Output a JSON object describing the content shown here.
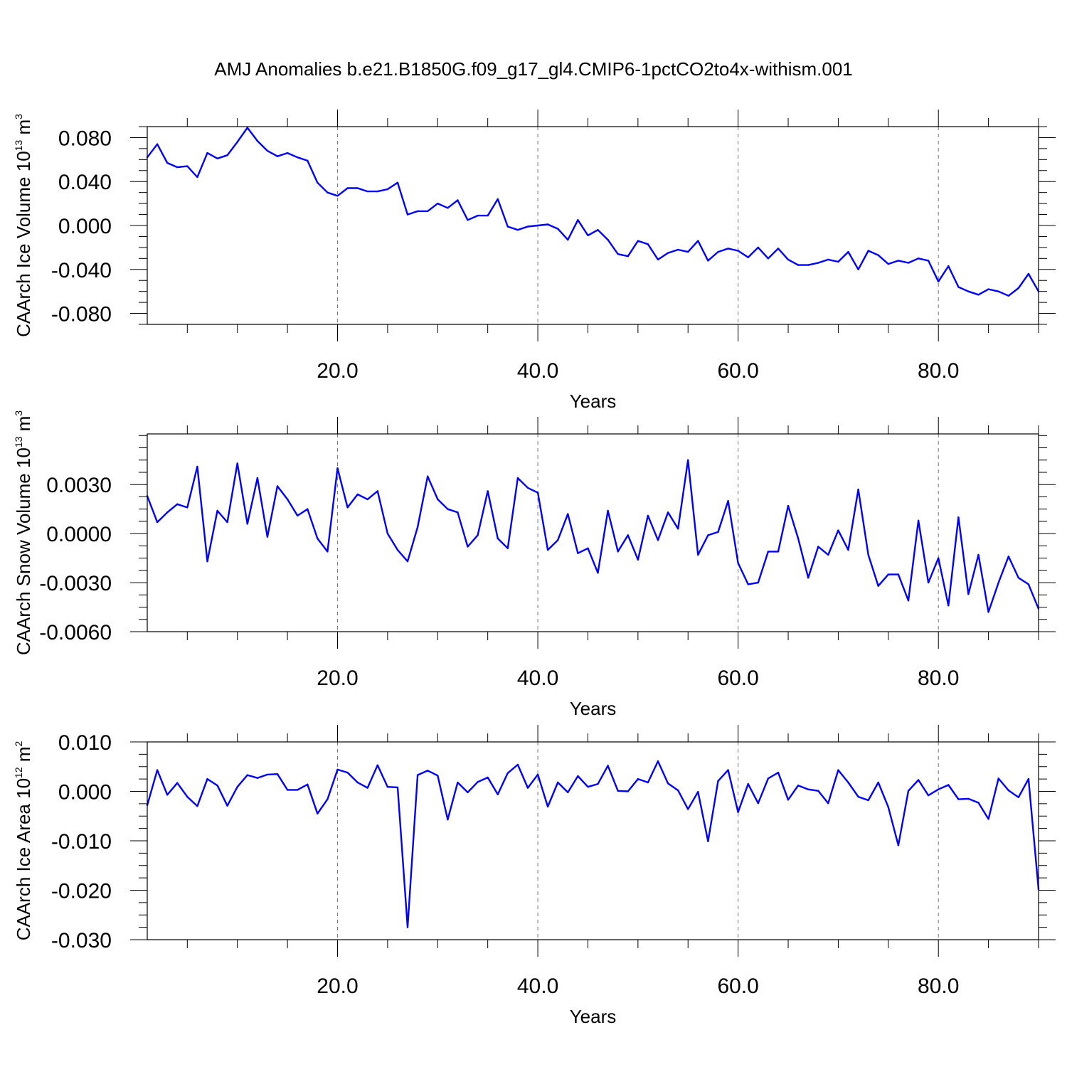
{
  "title": "AMJ Anomalies b.e21.B1850G.f09_g17_gl4.CMIP6-1pctCO2to4x-withism.001",
  "colors": {
    "line": "#0000ff",
    "grid": "#777777",
    "frame": "#000000"
  },
  "chart_data": [
    {
      "type": "line",
      "ylabel": {
        "text": "CAArch Ice Volume 10",
        "sup": "13",
        "unit": " m",
        "unit_sup": "3"
      },
      "xlabel": "Years",
      "xlim": [
        1,
        90
      ],
      "ylim": [
        -0.09,
        0.09
      ],
      "yticks": [
        -0.08,
        -0.04,
        0.0,
        0.04,
        0.08
      ],
      "ytick_labels": [
        "-0.080",
        "-0.040",
        "0.000",
        "0.040",
        "0.080"
      ],
      "yminor_step": 0.01,
      "xticks": [
        20,
        40,
        60,
        80
      ],
      "xtick_labels": [
        "20.0",
        "40.0",
        "60.0",
        "80.0"
      ],
      "xminor_step": 5,
      "grid": "x-dashed",
      "series": [
        {
          "x": [
            1,
            2,
            3,
            4,
            5,
            6,
            7,
            8,
            9,
            10,
            11,
            12,
            13,
            14,
            15,
            16,
            17,
            18,
            19,
            20,
            21,
            22,
            23,
            24,
            25,
            26,
            27,
            28,
            29,
            30,
            31,
            32,
            33,
            34,
            35,
            36,
            37,
            38,
            39,
            40,
            41,
            42,
            43,
            44,
            45,
            46,
            47,
            48,
            49,
            50,
            51,
            52,
            53,
            54,
            55,
            56,
            57,
            58,
            59,
            60,
            61,
            62,
            63,
            64,
            65,
            66,
            67,
            68,
            69,
            70,
            71,
            72,
            73,
            74,
            75,
            76,
            77,
            78,
            79,
            80,
            81,
            82,
            83,
            84,
            85,
            86,
            87,
            88,
            89,
            90
          ],
          "values": [
            0.062,
            0.074,
            0.057,
            0.053,
            0.054,
            0.044,
            0.066,
            0.061,
            0.064,
            0.076,
            0.089,
            0.077,
            0.068,
            0.063,
            0.066,
            0.062,
            0.059,
            0.039,
            0.03,
            0.027,
            0.034,
            0.034,
            0.031,
            0.031,
            0.033,
            0.039,
            0.01,
            0.013,
            0.013,
            0.02,
            0.016,
            0.023,
            0.005,
            0.009,
            0.009,
            0.024,
            -0.001,
            -0.004,
            -0.001,
            0.0,
            0.001,
            -0.003,
            -0.013,
            0.005,
            -0.009,
            -0.004,
            -0.013,
            -0.026,
            -0.028,
            -0.014,
            -0.017,
            -0.031,
            -0.025,
            -0.022,
            -0.024,
            -0.014,
            -0.032,
            -0.024,
            -0.021,
            -0.023,
            -0.029,
            -0.02,
            -0.03,
            -0.021,
            -0.031,
            -0.036,
            -0.036,
            -0.034,
            -0.031,
            -0.033,
            -0.024,
            -0.04,
            -0.023,
            -0.027,
            -0.035,
            -0.032,
            -0.034,
            -0.03,
            -0.032,
            -0.051,
            -0.037,
            -0.056,
            -0.06,
            -0.063,
            -0.058,
            -0.06,
            -0.064,
            -0.057,
            -0.044,
            -0.06
          ]
        }
      ]
    },
    {
      "type": "line",
      "ylabel": {
        "text": "CAArch Snow Volume 10",
        "sup": "13",
        "unit": " m",
        "unit_sup": "3"
      },
      "xlabel": "Years",
      "xlim": [
        1,
        90
      ],
      "ylim": [
        -0.006,
        0.0061
      ],
      "yticks": [
        -0.006,
        -0.003,
        0.0,
        0.003
      ],
      "ytick_labels": [
        "-0.0060",
        "-0.0030",
        "0.0000",
        "0.0030"
      ],
      "yminor_step": 0.00075,
      "xticks": [
        20,
        40,
        60,
        80
      ],
      "xtick_labels": [
        "20.0",
        "40.0",
        "60.0",
        "80.0"
      ],
      "xminor_step": 5,
      "grid": "x-dashed",
      "series": [
        {
          "x": [
            1,
            2,
            3,
            4,
            5,
            6,
            7,
            8,
            9,
            10,
            11,
            12,
            13,
            14,
            15,
            16,
            17,
            18,
            19,
            20,
            21,
            22,
            23,
            24,
            25,
            26,
            27,
            28,
            29,
            30,
            31,
            32,
            33,
            34,
            35,
            36,
            37,
            38,
            39,
            40,
            41,
            42,
            43,
            44,
            45,
            46,
            47,
            48,
            49,
            50,
            51,
            52,
            53,
            54,
            55,
            56,
            57,
            58,
            59,
            60,
            61,
            62,
            63,
            64,
            65,
            66,
            67,
            68,
            69,
            70,
            71,
            72,
            73,
            74,
            75,
            76,
            77,
            78,
            79,
            80,
            81,
            82,
            83,
            84,
            85,
            86,
            87,
            88,
            89,
            90
          ],
          "values": [
            0.0023,
            0.0007,
            0.0013,
            0.0018,
            0.0016,
            0.0041,
            -0.0017,
            0.0014,
            0.0007,
            0.0043,
            0.0006,
            0.0034,
            -0.0002,
            0.0029,
            0.0021,
            0.0011,
            0.0015,
            -0.0003,
            -0.0011,
            0.004,
            0.0016,
            0.0024,
            0.0021,
            0.0026,
            0.0,
            -0.001,
            -0.0017,
            0.0004,
            0.0035,
            0.0021,
            0.0015,
            0.0013,
            -0.0008,
            -0.0001,
            0.0026,
            -0.0003,
            -0.0009,
            0.0034,
            0.0028,
            0.0025,
            -0.001,
            -0.0004,
            0.0012,
            -0.0012,
            -0.0009,
            -0.0024,
            0.0014,
            -0.0011,
            -0.0001,
            -0.0016,
            0.0011,
            -0.0004,
            0.0013,
            0.0003,
            0.0045,
            -0.0013,
            -0.0001,
            0.0001,
            0.002,
            -0.0018,
            -0.0031,
            -0.003,
            -0.0011,
            -0.0011,
            0.0017,
            -0.0003,
            -0.0027,
            -0.0008,
            -0.0013,
            0.0002,
            -0.001,
            0.0027,
            -0.0013,
            -0.0032,
            -0.0025,
            -0.0025,
            -0.0041,
            0.0008,
            -0.003,
            -0.0015,
            -0.0044,
            0.001,
            -0.0037,
            -0.0013,
            -0.0048,
            -0.003,
            -0.0014,
            -0.0027,
            -0.0031,
            -0.0046
          ]
        }
      ]
    },
    {
      "type": "line",
      "ylabel": {
        "text": "CAArch Ice Area 10",
        "sup": "12",
        "unit": " m",
        "unit_sup": "2"
      },
      "xlabel": "Years",
      "xlim": [
        1,
        90
      ],
      "ylim": [
        -0.03,
        0.01
      ],
      "yticks": [
        -0.03,
        -0.02,
        -0.01,
        0.0,
        0.01
      ],
      "ytick_labels": [
        "-0.030",
        "-0.020",
        "-0.010",
        "0.000",
        "0.010"
      ],
      "yminor_step": 0.0025,
      "xticks": [
        20,
        40,
        60,
        80
      ],
      "xtick_labels": [
        "20.0",
        "40.0",
        "60.0",
        "80.0"
      ],
      "xminor_step": 5,
      "grid": "x-dashed",
      "series": [
        {
          "x": [
            1,
            2,
            3,
            4,
            5,
            6,
            7,
            8,
            9,
            10,
            11,
            12,
            13,
            14,
            15,
            16,
            17,
            18,
            19,
            20,
            21,
            22,
            23,
            24,
            25,
            26,
            27,
            28,
            29,
            30,
            31,
            32,
            33,
            34,
            35,
            36,
            37,
            38,
            39,
            40,
            41,
            42,
            43,
            44,
            45,
            46,
            47,
            48,
            49,
            50,
            51,
            52,
            53,
            54,
            55,
            56,
            57,
            58,
            59,
            60,
            61,
            62,
            63,
            64,
            65,
            66,
            67,
            68,
            69,
            70,
            71,
            72,
            73,
            74,
            75,
            76,
            77,
            78,
            79,
            80,
            81,
            82,
            83,
            84,
            85,
            86,
            87,
            88,
            89,
            90
          ],
          "values": [
            -0.0028,
            0.0043,
            -0.0007,
            0.0017,
            -0.0011,
            -0.003,
            0.0025,
            0.0012,
            -0.0029,
            0.0009,
            0.0033,
            0.0027,
            0.0034,
            0.0035,
            0.0003,
            0.0003,
            0.0014,
            -0.0045,
            -0.0016,
            0.0044,
            0.0038,
            0.0018,
            0.0007,
            0.0053,
            0.0009,
            0.0008,
            -0.0275,
            0.0033,
            0.0042,
            0.0032,
            -0.0057,
            0.0018,
            -0.0002,
            0.0019,
            0.0028,
            -0.0006,
            0.0037,
            0.0054,
            0.0007,
            0.0034,
            -0.0031,
            0.0018,
            -0.0002,
            0.0031,
            0.0009,
            0.0015,
            0.0052,
            0.0001,
            0.0,
            0.0025,
            0.0018,
            0.0061,
            0.0016,
            0.0002,
            -0.0036,
            -0.0001,
            -0.0101,
            0.0021,
            0.0043,
            -0.0042,
            0.0015,
            -0.0024,
            0.0026,
            0.0038,
            -0.0017,
            0.0012,
            0.0004,
            0.0001,
            -0.0024,
            0.0043,
            0.0018,
            -0.0011,
            -0.0018,
            0.0018,
            -0.0032,
            -0.0109,
            0.0001,
            0.0023,
            -0.0008,
            0.0004,
            0.0013,
            -0.0016,
            -0.0015,
            -0.0023,
            -0.0056,
            0.0026,
            0.0002,
            -0.0012,
            0.0025,
            -0.0198
          ]
        }
      ]
    }
  ]
}
